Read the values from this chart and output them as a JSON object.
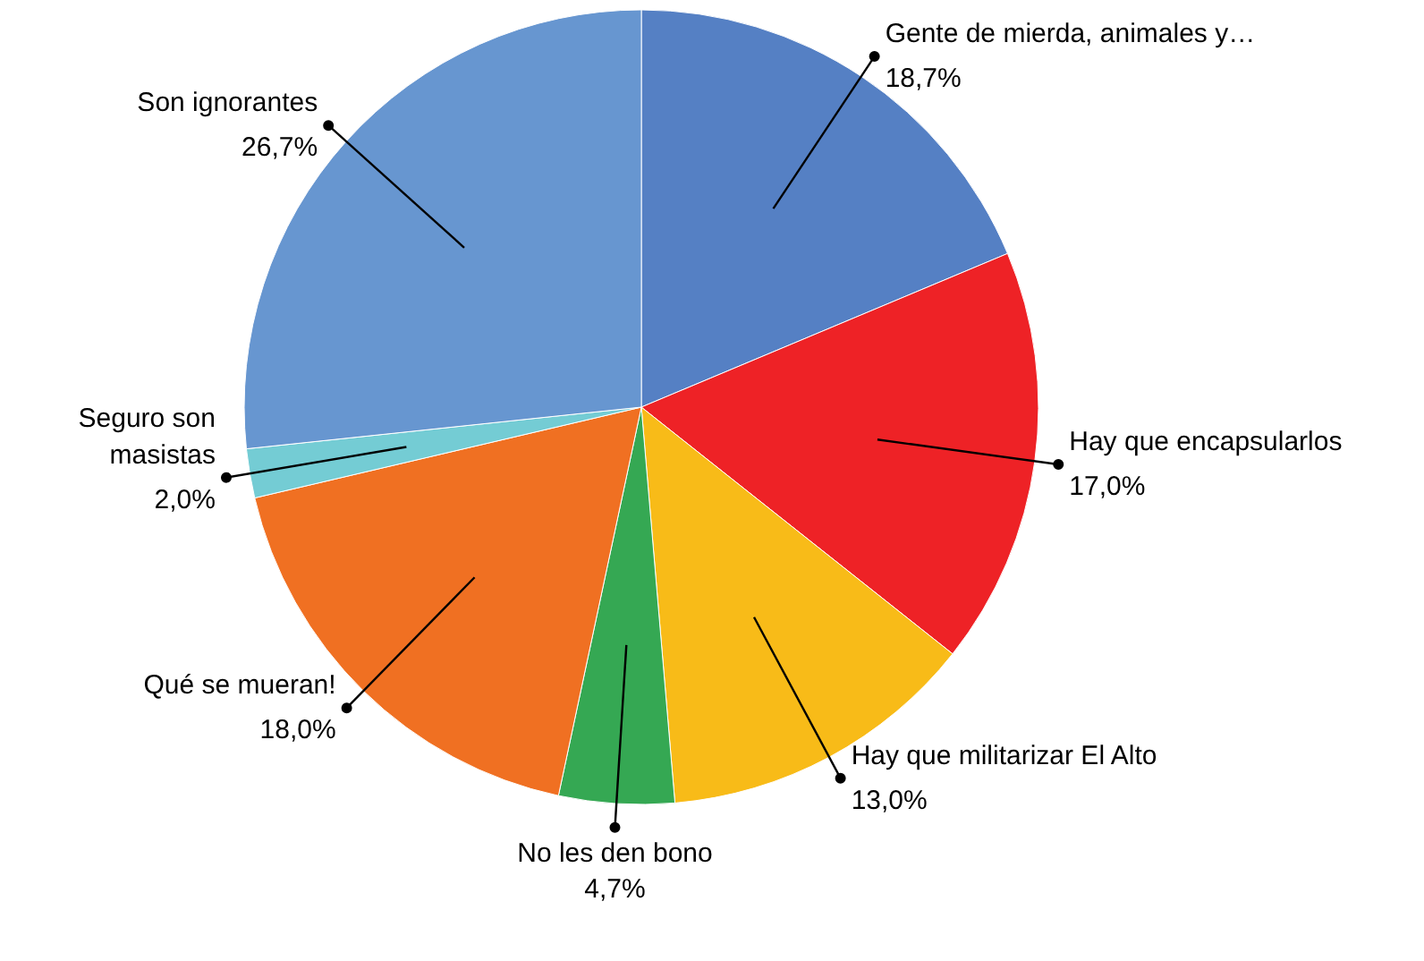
{
  "chart_data": {
    "type": "pie",
    "categories": [
      "Gente de mierda, animales y…",
      "Hay que encapsularlos",
      "Hay que militarizar El Alto",
      "No les den bono",
      "Qué se mueran!",
      "Seguro son masistas",
      "Son ignorantes"
    ],
    "values": [
      18.7,
      17.0,
      13.0,
      4.7,
      18.0,
      2.0,
      26.7
    ],
    "value_labels": [
      "18,7%",
      "17,0%",
      "13,0%",
      "4,7%",
      "18,0%",
      "2,0%",
      "26,7%"
    ],
    "colors": [
      "#5580c4",
      "#ee2226",
      "#f8bb18",
      "#35a853",
      "#f07022",
      "#74ccd4",
      "#6796d0"
    ]
  }
}
